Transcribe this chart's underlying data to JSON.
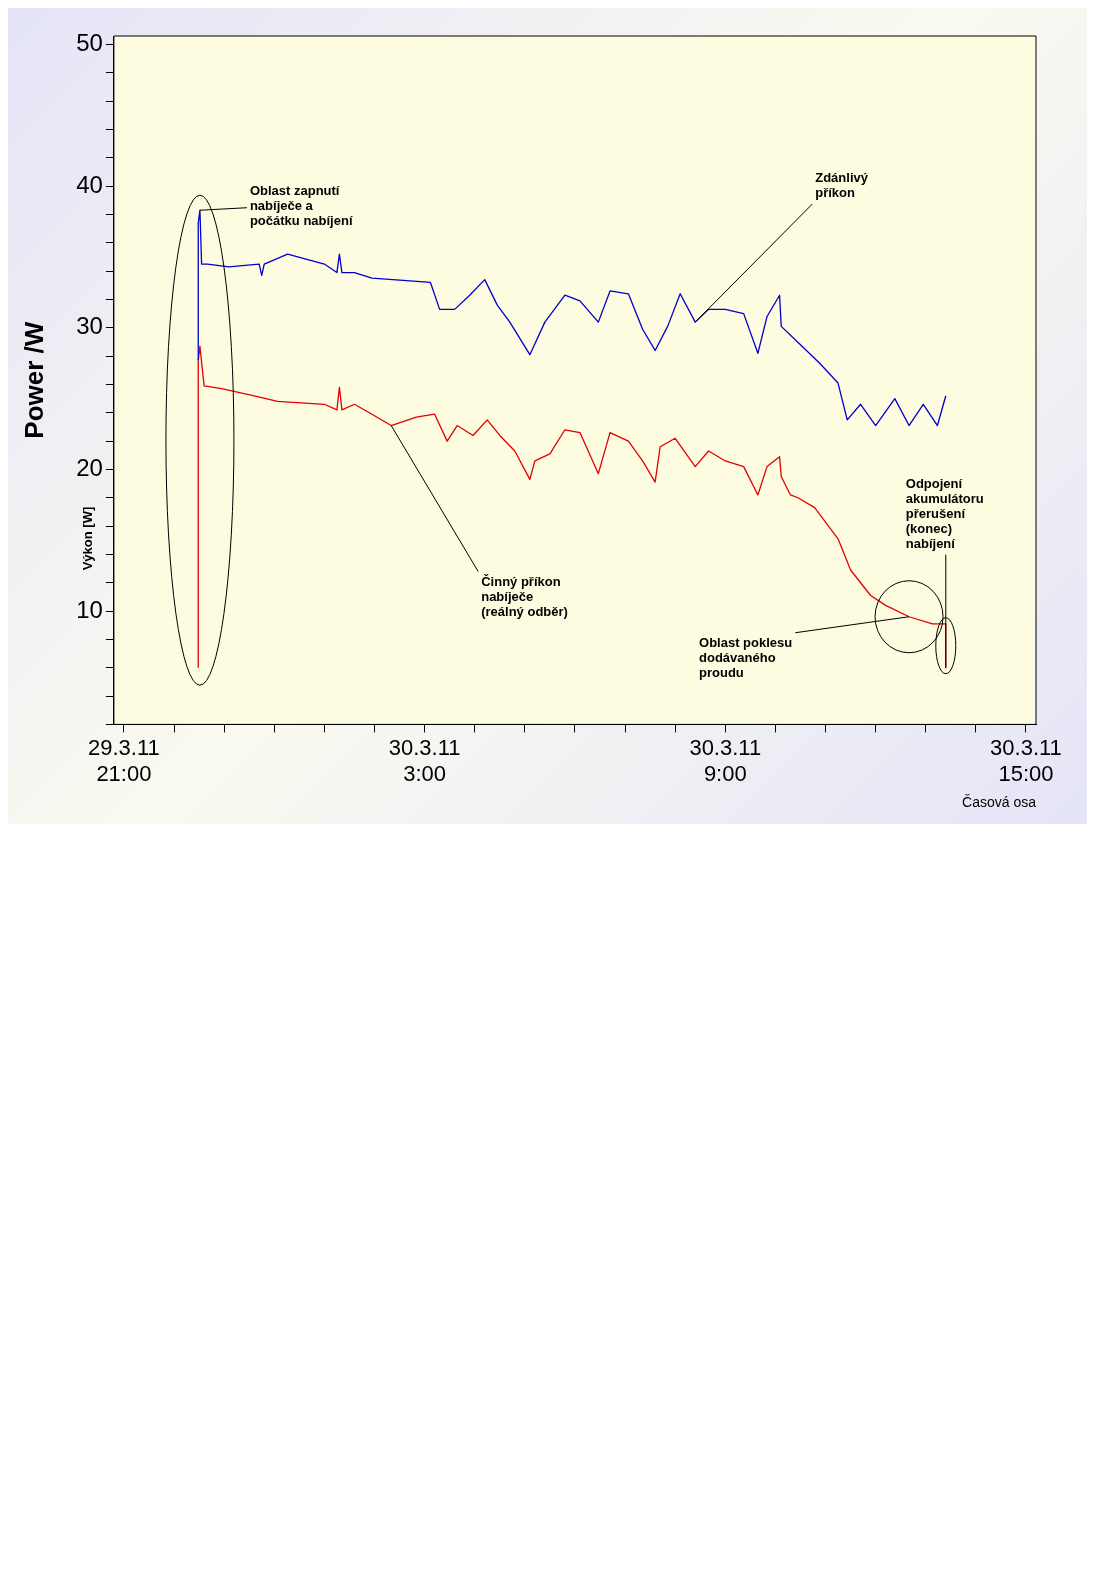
{
  "chart_data": {
    "type": "line",
    "xlabel": "Časová osa",
    "ylabel": "Power /W",
    "xlim": [
      "--03-29T20:48",
      "--03-30T15:12"
    ],
    "xticks": [
      {
        "value": "--03-29T21:00",
        "label": "29.3.11 21:00"
      },
      {
        "value": "--03-29T22:00",
        "label": null
      },
      {
        "value": "--03-29T23:00",
        "label": null
      },
      {
        "value": "--03-30T00:00",
        "label": null
      },
      {
        "value": "--03-30T01:00",
        "label": null
      },
      {
        "value": "--03-30T02:00",
        "label": null
      },
      {
        "value": "--03-30T03:00",
        "label": "30.3.11 3:00"
      },
      {
        "value": "--03-30T04:00",
        "label": null
      },
      {
        "value": "--03-30T05:00",
        "label": null
      },
      {
        "value": "--03-30T06:00",
        "label": null
      },
      {
        "value": "--03-30T07:00",
        "label": null
      },
      {
        "value": "--03-30T08:00",
        "label": null
      },
      {
        "value": "--03-30T09:00",
        "label": "30.3.11 9:00"
      },
      {
        "value": "--03-30T10:00",
        "label": null
      },
      {
        "value": "--03-30T11:00",
        "label": null
      },
      {
        "value": "--03-30T12:00",
        "label": null
      },
      {
        "value": "--03-30T13:00",
        "label": null
      },
      {
        "value": "--03-30T14:00",
        "label": null
      },
      {
        "value": "--03-30T15:00",
        "label": "30.3.11 15:00"
      }
    ],
    "ylim": [
      2,
      50.6
    ],
    "yticks": [
      {
        "value": 2,
        "label": null
      },
      {
        "value": 4,
        "label": null
      },
      {
        "value": 6,
        "label": null
      },
      {
        "value": 8,
        "label": null
      },
      10,
      {
        "value": 12,
        "label": null
      },
      {
        "value": 14,
        "label": null
      },
      {
        "value": 16,
        "label": null
      },
      {
        "value": 18,
        "label": null
      },
      20,
      {
        "value": 22,
        "label": null
      },
      {
        "value": 24,
        "label": null
      },
      {
        "value": 26,
        "label": null
      },
      {
        "value": 28,
        "label": null
      },
      30,
      {
        "value": 32,
        "label": null
      },
      {
        "value": 34,
        "label": null
      },
      {
        "value": 36,
        "label": null
      },
      {
        "value": 38,
        "label": null
      },
      40,
      {
        "value": 42,
        "label": null
      },
      {
        "value": 44,
        "label": null
      },
      {
        "value": 46,
        "label": null
      },
      {
        "value": 48,
        "label": null
      },
      50
    ],
    "grid": false,
    "legend": false,
    "marker": "none",
    "line_style": "solid",
    "series": [
      {
        "color": "#0000cc",
        "x": [
          "--03-29T22:29",
          "--03-29T22:29",
          "--03-29T22:31",
          "--03-29T22:33",
          "--03-29T22:40",
          "--03-29T23:06",
          "--03-29T23:42",
          "--03-29T23:45",
          "--03-29T23:48",
          "--03-30T00:16",
          "--03-30T01:00",
          "--03-30T01:15",
          "--03-30T01:18",
          "--03-30T01:21",
          "--03-30T01:36",
          "--03-30T01:57",
          "--03-30T02:22",
          "--03-30T03:07",
          "--03-30T03:18",
          "--03-30T03:36",
          "--03-30T03:54",
          "--03-30T04:12",
          "--03-30T04:27",
          "--03-30T04:42",
          "--03-30T05:06",
          "--03-30T05:24",
          "--03-30T05:48",
          "--03-30T06:06",
          "--03-30T06:28",
          "--03-30T06:42",
          "--03-30T07:04",
          "--03-30T07:21",
          "--03-30T07:36",
          "--03-30T07:51",
          "--03-30T08:06",
          "--03-30T08:24",
          "--03-30T08:40",
          "--03-30T09:00",
          "--03-30T09:22",
          "--03-30T09:39",
          "--03-30T09:50",
          "--03-30T10:05",
          "--03-30T10:07",
          "--03-30T10:30",
          "--03-30T10:53",
          "--03-30T11:15",
          "--03-30T11:26",
          "--03-30T11:42",
          "--03-30T12:00",
          "--03-30T12:23",
          "--03-30T12:40",
          "--03-30T12:57",
          "--03-30T13:14",
          "--03-30T13:24"
        ],
        "values": [
          27.7,
          37.4,
          38.3,
          34.5,
          34.5,
          34.3,
          34.5,
          33.7,
          34.5,
          35.2,
          34.5,
          33.9,
          35.2,
          33.9,
          33.9,
          33.5,
          33.4,
          33.2,
          31.3,
          31.3,
          32.3,
          33.4,
          31.6,
          30.4,
          28.1,
          30.4,
          32.3,
          31.9,
          30.4,
          32.6,
          32.4,
          29.9,
          28.4,
          30.1,
          32.4,
          30.4,
          31.3,
          31.3,
          31.0,
          28.2,
          30.8,
          32.3,
          30.1,
          28.8,
          27.5,
          26.1,
          23.5,
          24.6,
          23.1,
          25.0,
          23.1,
          24.6,
          23.1,
          25.2
        ]
      },
      {
        "color": "#e00000",
        "x": [
          "--03-29T22:29",
          "--03-29T22:29",
          "--03-29T22:31",
          "--03-29T22:36",
          "--03-29T22:57",
          "--03-29T23:36",
          "--03-30T00:04",
          "--03-30T01:00",
          "--03-30T01:15",
          "--03-30T01:18",
          "--03-30T01:21",
          "--03-30T01:36",
          "--03-30T01:57",
          "--03-30T02:20",
          "--03-30T02:50",
          "--03-30T03:12",
          "--03-30T03:27",
          "--03-30T03:39",
          "--03-30T03:58",
          "--03-30T04:15",
          "--03-30T04:30",
          "--03-30T04:48",
          "--03-30T05:06",
          "--03-30T05:12",
          "--03-30T05:30",
          "--03-30T05:48",
          "--03-30T06:06",
          "--03-30T06:28",
          "--03-30T06:42",
          "--03-30T07:04",
          "--03-30T07:21",
          "--03-30T07:36",
          "--03-30T07:42",
          "--03-30T08:00",
          "--03-30T08:24",
          "--03-30T08:40",
          "--03-30T09:00",
          "--03-30T09:22",
          "--03-30T09:39",
          "--03-30T09:50",
          "--03-30T10:05",
          "--03-30T10:07",
          "--03-30T10:18",
          "--03-30T10:27",
          "--03-30T10:47",
          "--03-30T11:15",
          "--03-30T11:30",
          "--03-30T11:54",
          "--03-30T12:12",
          "--03-30T12:40",
          "--03-30T13:08",
          "--03-30T13:24",
          "--03-30T13:24"
        ],
        "values": [
          6.0,
          27.7,
          28.7,
          25.9,
          25.7,
          25.2,
          24.8,
          24.6,
          24.2,
          25.8,
          24.2,
          24.6,
          23.9,
          23.1,
          23.7,
          23.9,
          22.0,
          23.1,
          22.4,
          23.5,
          22.4,
          21.3,
          19.3,
          20.6,
          21.1,
          22.8,
          22.6,
          19.7,
          22.6,
          22.0,
          20.6,
          19.1,
          21.6,
          22.2,
          20.2,
          21.3,
          20.6,
          20.2,
          18.2,
          20.2,
          20.9,
          19.5,
          18.2,
          18.0,
          17.3,
          15.1,
          12.9,
          11.1,
          10.4,
          9.6,
          9.1,
          9.1,
          6.0
        ]
      }
    ],
    "annotations": [
      {
        "text": "Oblast zapnutí\nnabíječe a\npočátku nabíjení",
        "x": "--03-29T22:31",
        "y": 38.3
      },
      {
        "text": "Zdánlivý\npříkon",
        "x": "--03-30T08:24",
        "y": 30.4
      },
      {
        "text": "Činný příkon\nnabíječe\n(reálný odběr)",
        "x": "--03-30T02:20",
        "y": 23.1
      },
      {
        "text": "Oblast poklesu\ndodávaného\nproudu",
        "x": "--03-30T12:40",
        "y": 9.6
      },
      {
        "text": "Odpojení\nakumulátoru\npřerušení\n(konec)\nnabíjení",
        "x": "--03-30T13:24",
        "y": 6.0
      },
      "Výkon [W]"
    ]
  }
}
